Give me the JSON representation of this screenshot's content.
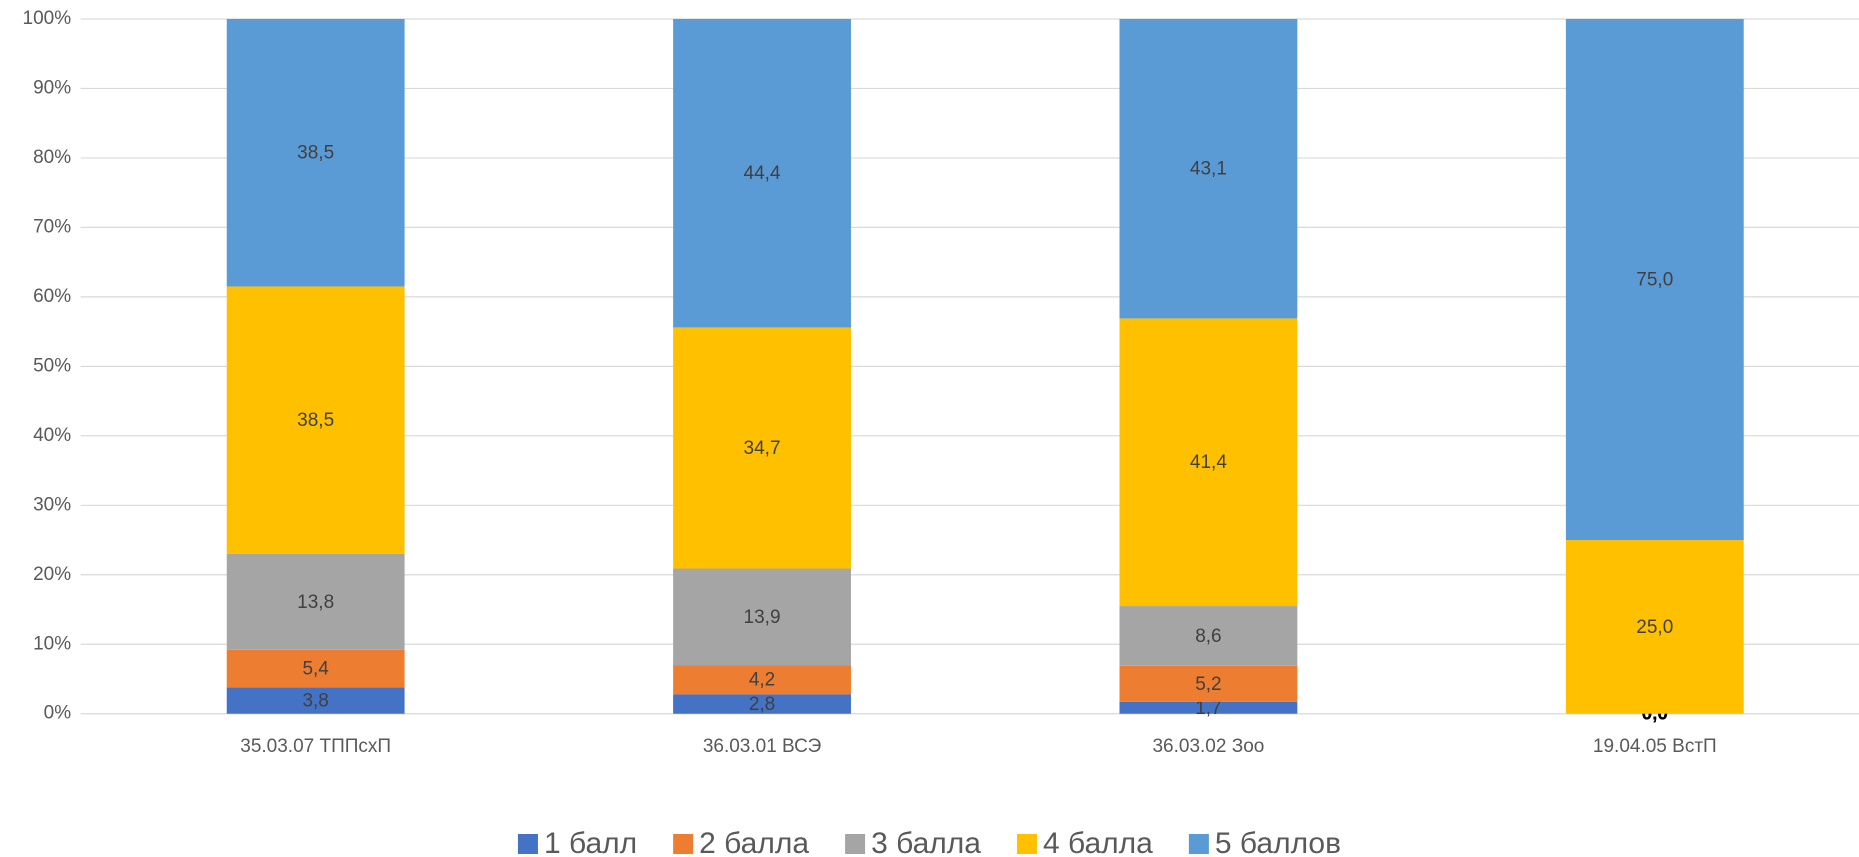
{
  "chart_data": {
    "type": "stacked_bar_percent",
    "categories": [
      "35.03.07 ТППсхП",
      "36.03.01 ВСЭ",
      "36.03.02 Зоо",
      "19.04.05 ВстП"
    ],
    "series": [
      {
        "name": "1 балл",
        "color": "#4472c4",
        "values": [
          3.8,
          2.8,
          1.7,
          0.0
        ],
        "value_labels": [
          "3,8",
          "2,8",
          "1,7",
          "0,0"
        ]
      },
      {
        "name": "2 балла",
        "color": "#ed7d31",
        "values": [
          5.4,
          4.2,
          5.2,
          0.0
        ],
        "value_labels": [
          "5,4",
          "4,2",
          "5,2",
          "0,0"
        ]
      },
      {
        "name": "3 балла",
        "color": "#a5a5a5",
        "values": [
          13.8,
          13.9,
          8.6,
          0.0
        ],
        "value_labels": [
          "13,8",
          "13,9",
          "8,6",
          "0,0"
        ]
      },
      {
        "name": "4 балла",
        "color": "#ffc000",
        "values": [
          38.5,
          34.7,
          41.4,
          25.0
        ],
        "value_labels": [
          "38,5",
          "34,7",
          "41,4",
          "25,0"
        ]
      },
      {
        "name": "5 баллов",
        "color": "#5b9bd5",
        "values": [
          38.5,
          44.4,
          43.1,
          75.0
        ],
        "value_labels": [
          "38,5",
          "44,4",
          "43,1",
          "75,0"
        ]
      }
    ],
    "ylim": [
      0,
      100
    ],
    "yticks": [
      {
        "value": 0,
        "label": "0%"
      },
      {
        "value": 10,
        "label": "10%"
      },
      {
        "value": 20,
        "label": "20%"
      },
      {
        "value": 30,
        "label": "30%"
      },
      {
        "value": 40,
        "label": "40%"
      },
      {
        "value": 50,
        "label": "50%"
      },
      {
        "value": 60,
        "label": "60%"
      },
      {
        "value": 70,
        "label": "70%"
      },
      {
        "value": 80,
        "label": "80%"
      },
      {
        "value": 90,
        "label": "90%"
      },
      {
        "value": 100,
        "label": "100%"
      }
    ],
    "grid": true,
    "legend": "bottom"
  }
}
